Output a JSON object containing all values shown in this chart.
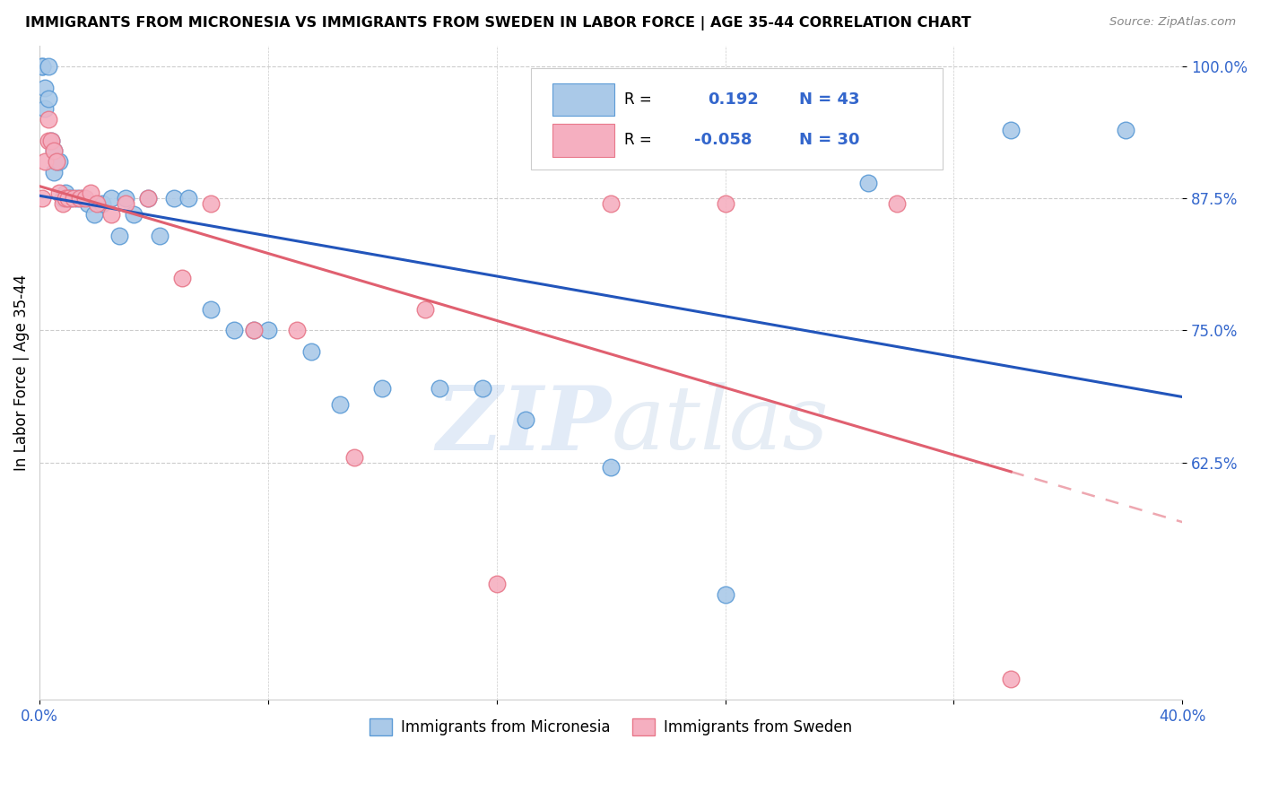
{
  "title": "IMMIGRANTS FROM MICRONESIA VS IMMIGRANTS FROM SWEDEN IN LABOR FORCE | AGE 35-44 CORRELATION CHART",
  "source": "Source: ZipAtlas.com",
  "ylabel": "In Labor Force | Age 35-44",
  "xlim": [
    0.0,
    0.4
  ],
  "ylim": [
    0.4,
    1.02
  ],
  "yticks": [
    1.0,
    0.875,
    0.75,
    0.625
  ],
  "ytick_labels": [
    "100.0%",
    "87.5%",
    "75.0%",
    "62.5%"
  ],
  "xticks": [
    0.0,
    0.08,
    0.16,
    0.24,
    0.32,
    0.4
  ],
  "xtick_labels": [
    "0.0%",
    "",
    "",
    "",
    "",
    "40.0%"
  ],
  "micronesia_color": "#aac9e8",
  "sweden_color": "#f5afc0",
  "micronesia_edge": "#5c9bd6",
  "sweden_edge": "#e8788a",
  "trend_blue": "#2255bb",
  "trend_pink": "#e06070",
  "R_micro": 0.192,
  "N_micro": 43,
  "R_sweden": -0.058,
  "N_sweden": 30,
  "legend_label_micro": "Immigrants from Micronesia",
  "legend_label_sweden": "Immigrants from Sweden",
  "watermark": "ZIPatlas",
  "micronesia_x": [
    0.001,
    0.001,
    0.002,
    0.002,
    0.003,
    0.003,
    0.004,
    0.005,
    0.005,
    0.006,
    0.007,
    0.008,
    0.009,
    0.01,
    0.011,
    0.013,
    0.015,
    0.017,
    0.019,
    0.022,
    0.025,
    0.028,
    0.03,
    0.033,
    0.038,
    0.042,
    0.047,
    0.052,
    0.06,
    0.068,
    0.075,
    0.08,
    0.095,
    0.105,
    0.12,
    0.14,
    0.155,
    0.17,
    0.2,
    0.24,
    0.29,
    0.34,
    0.38
  ],
  "micronesia_y": [
    1.0,
    1.0,
    0.96,
    0.98,
    1.0,
    0.97,
    0.93,
    0.92,
    0.9,
    0.91,
    0.91,
    0.875,
    0.88,
    0.875,
    0.875,
    0.875,
    0.875,
    0.87,
    0.86,
    0.87,
    0.875,
    0.84,
    0.875,
    0.86,
    0.875,
    0.84,
    0.875,
    0.875,
    0.77,
    0.75,
    0.75,
    0.75,
    0.73,
    0.68,
    0.695,
    0.695,
    0.695,
    0.665,
    0.62,
    0.5,
    0.89,
    0.94,
    0.94
  ],
  "sweden_x": [
    0.001,
    0.002,
    0.003,
    0.003,
    0.004,
    0.005,
    0.006,
    0.007,
    0.008,
    0.009,
    0.01,
    0.012,
    0.014,
    0.016,
    0.018,
    0.02,
    0.025,
    0.03,
    0.038,
    0.05,
    0.06,
    0.075,
    0.09,
    0.11,
    0.135,
    0.16,
    0.2,
    0.24,
    0.3,
    0.34
  ],
  "sweden_y": [
    0.875,
    0.91,
    0.93,
    0.95,
    0.93,
    0.92,
    0.91,
    0.88,
    0.87,
    0.875,
    0.875,
    0.875,
    0.875,
    0.875,
    0.88,
    0.87,
    0.86,
    0.87,
    0.875,
    0.8,
    0.87,
    0.75,
    0.75,
    0.63,
    0.77,
    0.51,
    0.87,
    0.87,
    0.87,
    0.42
  ]
}
